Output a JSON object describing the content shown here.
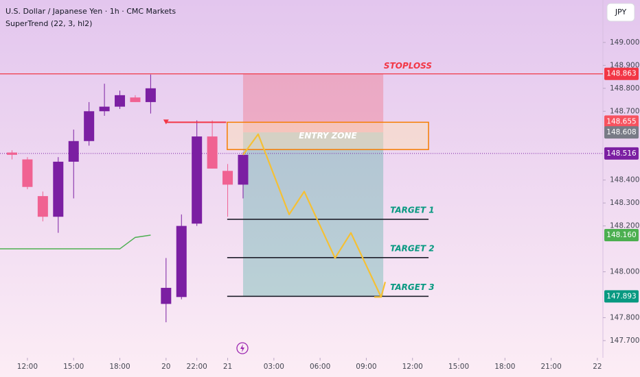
{
  "chart_data": {
    "type": "candlestick",
    "title": "U.S. Dollar / Japanese Yen · 1h · CMC Markets",
    "indicator": "SuperTrend (22, 3, hl2)",
    "currency_button": "JPY",
    "up_color": "#7b1fa2",
    "down_color": "#f06292",
    "x": [
      -1,
      0,
      1,
      2,
      3,
      4,
      5,
      6,
      7,
      8,
      9,
      10,
      11,
      12,
      13,
      14
    ],
    "open": [
      148.52,
      148.49,
      148.33,
      148.24,
      148.48,
      148.57,
      148.7,
      148.72,
      148.76,
      148.74,
      147.86,
      147.89,
      148.21,
      148.59,
      148.44,
      148.38
    ],
    "high": [
      148.53,
      148.5,
      148.35,
      148.5,
      148.62,
      148.74,
      148.82,
      148.79,
      148.77,
      148.86,
      148.06,
      148.25,
      148.66,
      148.66,
      148.47,
      148.52
    ],
    "low": [
      148.49,
      148.36,
      148.22,
      148.17,
      148.32,
      148.55,
      148.68,
      148.71,
      148.74,
      148.69,
      147.78,
      147.88,
      148.2,
      148.45,
      148.24,
      148.32
    ],
    "close": [
      148.51,
      148.37,
      148.24,
      148.48,
      148.57,
      148.7,
      148.72,
      148.77,
      148.74,
      148.8,
      147.93,
      148.2,
      148.59,
      148.45,
      148.38,
      148.51
    ],
    "supertrend": {
      "x": [
        -1.78,
        6.0,
        7.0,
        8.0
      ],
      "values": [
        148.1,
        148.1,
        148.15,
        148.16
      ],
      "color": "#4caf50"
    },
    "xlim": [
      -1.78,
      37.36
    ],
    "ylim": [
      147.625,
      149.185
    ],
    "xticks": [
      {
        "value": 0,
        "label": "12:00"
      },
      {
        "value": 3,
        "label": "15:00"
      },
      {
        "value": 6,
        "label": "18:00"
      },
      {
        "value": 9,
        "label": "20"
      },
      {
        "value": 11,
        "label": "22:00"
      },
      {
        "value": 13,
        "label": "21"
      },
      {
        "value": 16,
        "label": "03:00"
      },
      {
        "value": 19,
        "label": "06:00"
      },
      {
        "value": 22,
        "label": "09:00"
      },
      {
        "value": 25,
        "label": "12:00"
      },
      {
        "value": 28,
        "label": "15:00"
      },
      {
        "value": 31,
        "label": "18:00"
      },
      {
        "value": 34,
        "label": "21:00"
      },
      {
        "value": 37,
        "label": "22"
      }
    ],
    "yticks": [
      {
        "value": 149.0,
        "label": "149.000"
      },
      {
        "value": 148.9,
        "label": "148.900"
      },
      {
        "value": 148.8,
        "label": "148.800"
      },
      {
        "value": 148.7,
        "label": "148.700"
      },
      {
        "value": 148.4,
        "label": "148.400"
      },
      {
        "value": 148.3,
        "label": "148.300"
      },
      {
        "value": 148.2,
        "label": "148.200"
      },
      {
        "value": 148.0,
        "label": "148.000"
      },
      {
        "value": 147.8,
        "label": "147.800"
      },
      {
        "value": 147.7,
        "label": "147.700"
      }
    ],
    "price_labels": [
      {
        "value": 148.863,
        "label": "148.863",
        "color": "#f23645"
      },
      {
        "value": 148.655,
        "label": "148.655",
        "color": "#f7525f"
      },
      {
        "value": 148.608,
        "label": "148.608",
        "color": "#787b86"
      },
      {
        "value": 148.516,
        "label": "148.516",
        "color": "#7b1fa2"
      },
      {
        "value": 148.16,
        "label": "148.160",
        "color": "#4caf50"
      },
      {
        "value": 147.893,
        "label": "147.893",
        "color": "#089981"
      }
    ],
    "stoploss": {
      "label": "STOPLOSS",
      "value": 148.863,
      "color": "#f23645"
    },
    "position": {
      "x": [
        14.0,
        23.1
      ],
      "entry": 148.608,
      "stop": 148.863,
      "target": 147.893
    },
    "entry_zone": {
      "label": "ENTRY ZONE",
      "x": [
        12.97,
        26.04
      ],
      "top": 148.652,
      "bottom": 148.533,
      "color": "#f57c00"
    },
    "targets": {
      "x": [
        12.97,
        26.04
      ],
      "color": "#089981",
      "items": [
        {
          "label": "TARGET 1",
          "value": 148.229
        },
        {
          "label": "TARGET 2",
          "value": 148.062
        },
        {
          "label": "TARGET 3",
          "value": 147.893
        }
      ]
    },
    "projection": {
      "x": [
        14.0,
        14.98,
        16.99,
        17.97,
        19.97,
        21.0,
        22.96
      ],
      "values": [
        148.51,
        148.6,
        148.25,
        148.35,
        148.06,
        148.17,
        147.89
      ],
      "color": "#f5c034"
    },
    "alert": {
      "x": [
        9.0,
        12.9
      ],
      "value": 148.652,
      "color": "#f23645"
    }
  }
}
